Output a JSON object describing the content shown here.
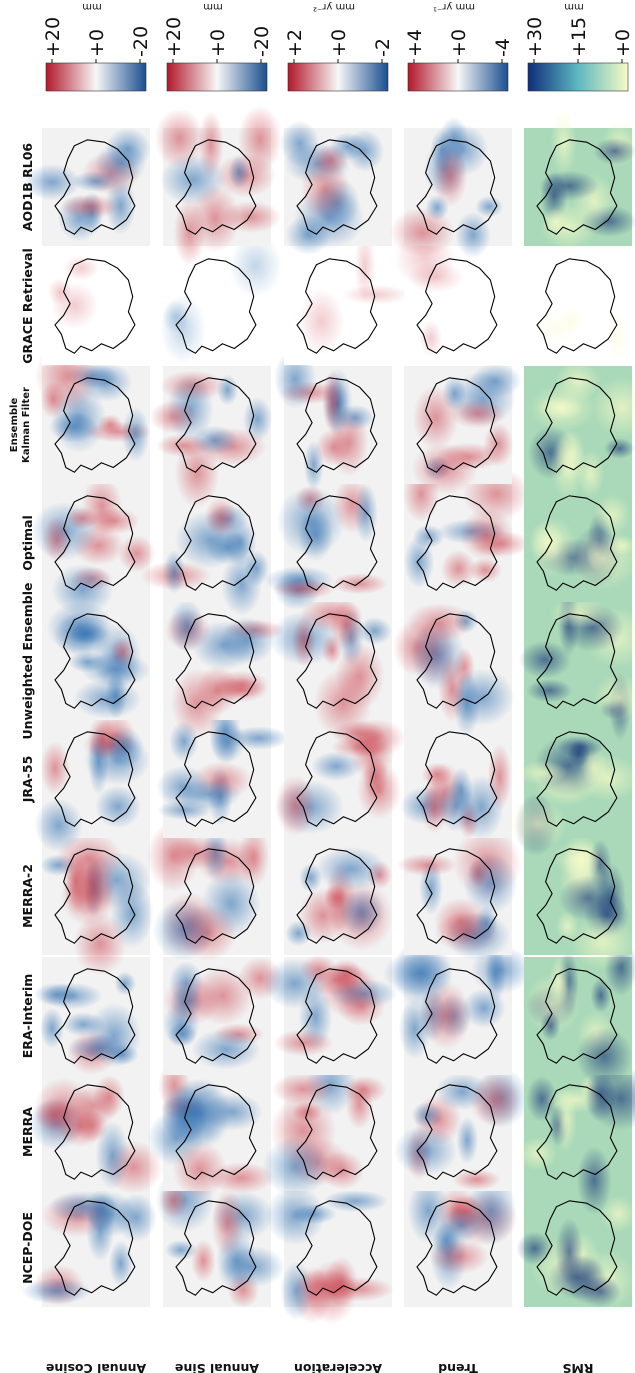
{
  "columns": [
    "NCEP-DOE",
    "MERRA",
    "ERA-Interim",
    "MERRA-2",
    "JRA-55",
    "Unweighted Ensemble",
    "Optimal",
    "Ensemble Kalman Filter",
    "GRACE Retrieval",
    "AOD1B RL06"
  ],
  "ensemble_label_lines": [
    "Ensemble",
    "Kalman Filter"
  ],
  "rows": [
    {
      "label": "Annual Cosine",
      "unit": "mm",
      "ticks": [
        "-20",
        "+0",
        "+20"
      ],
      "cmap": "diverging"
    },
    {
      "label": "Annual Sine",
      "unit": "mm",
      "ticks": [
        "-20",
        "+0",
        "+20"
      ],
      "cmap": "diverging"
    },
    {
      "label": "Acceleration",
      "unit": "mm yr⁻²",
      "ticks": [
        "-2",
        "+0",
        "+2"
      ],
      "cmap": "diverging"
    },
    {
      "label": "Trend",
      "unit": "mm yr⁻¹",
      "ticks": [
        "-4",
        "+0",
        "+4"
      ],
      "cmap": "diverging"
    },
    {
      "label": "RMS",
      "unit": "mm",
      "ticks": [
        "+0",
        "+15",
        "+30"
      ],
      "cmap": "sequential"
    }
  ],
  "colors": {
    "diverging_low": "#1a4f8f",
    "diverging_mid": "#f7f7f7",
    "diverging_high": "#b2182b",
    "sequential_low": "#f6fbc4",
    "sequential_mid": "#5db8c0",
    "sequential_high": "#0f2d7a",
    "coastline": "#000000"
  }
}
